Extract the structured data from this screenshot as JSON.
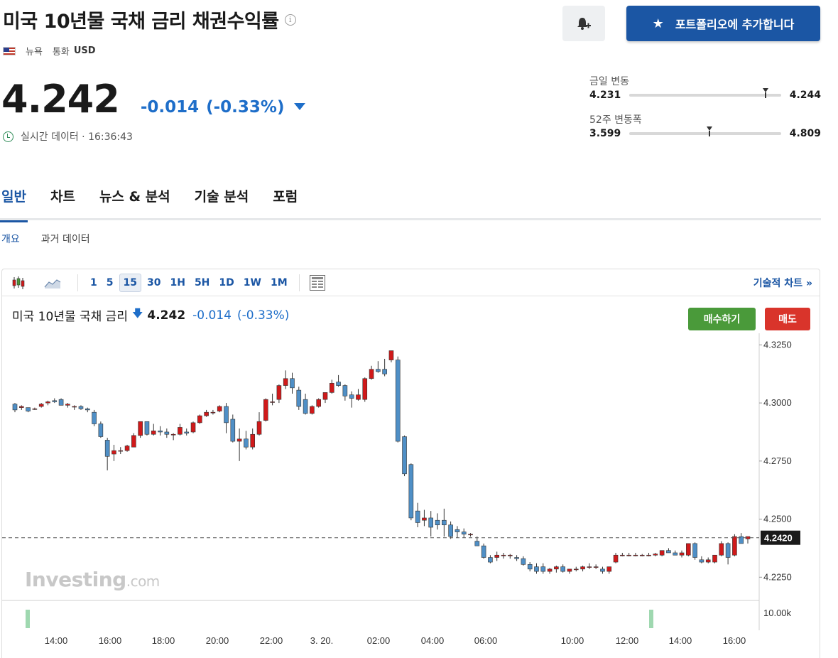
{
  "header": {
    "title": "미국 10년물 국채 금리 채권수익률",
    "info_symbol": "i",
    "location": "뉴욕",
    "currency_label": "통화",
    "currency": "USD",
    "portfolio_button": "포트폴리오에 추가합니다",
    "bell_icon": "bell-plus-icon",
    "star_icon": "star-icon"
  },
  "quote": {
    "price": "4.242",
    "change": "-0.014",
    "change_pct": "(-0.33%)",
    "direction": "down",
    "realtime_label": "실시간 데이터 · 16:36:43"
  },
  "ranges": {
    "daily": {
      "label": "금일 변동",
      "low": "4.231",
      "high": "4.244",
      "position": 0.9
    },
    "week52": {
      "label": "52주 변동폭",
      "low": "3.599",
      "high": "4.809",
      "position": 0.53
    }
  },
  "tabs": [
    "일반",
    "차트",
    "뉴스 & 분석",
    "기술 분석",
    "포럼"
  ],
  "subtabs": [
    "개요",
    "과거 데이터"
  ],
  "chart_toolbar": {
    "timeframes": [
      "1",
      "5",
      "15",
      "30",
      "1H",
      "5H",
      "1D",
      "1W",
      "1M"
    ],
    "selected": "15",
    "tech_link": "기술적 차트 »"
  },
  "chart_header": {
    "name": "미국 10년물 국채 금리",
    "arrow": "🡇",
    "price": "4.242",
    "change": "-0.014",
    "change_pct": "(-0.33%)",
    "buy": "매수하기",
    "sell": "매도"
  },
  "watermark": {
    "brand": "Investing",
    "suffix": ".com"
  },
  "colors": {
    "accent": "#1b56a4",
    "down": "#1e6ec9",
    "up_candle": "#d0191a",
    "down_candle": "#4f8fc6",
    "buy": "#4a9a3a",
    "sell": "#d9342b"
  },
  "chart_data": {
    "type": "candlestick",
    "title": "미국 10년물 국채 금리",
    "ylim": [
      4.215,
      4.33
    ],
    "yticks": [
      "4.3250",
      "4.3000",
      "4.2750",
      "4.2500",
      "4.2250"
    ],
    "current_price_label": "4.2420",
    "current_price": 4.242,
    "volume_label": "10.00k",
    "xticks": [
      "14:00",
      "16:00",
      "18:00",
      "20:00",
      "22:00",
      "3. 20.",
      "02:00",
      "04:00",
      "06:00",
      "10:00",
      "12:00",
      "14:00",
      "16:00"
    ],
    "candles_ohlc": [
      [
        4.2995,
        4.3,
        4.296,
        4.297
      ],
      [
        4.298,
        4.299,
        4.297,
        4.2985
      ],
      [
        4.298,
        4.298,
        4.296,
        4.2965
      ],
      [
        4.2975,
        4.298,
        4.297,
        4.2975
      ],
      [
        4.2985,
        4.3,
        4.298,
        4.2995
      ],
      [
        4.3,
        4.301,
        4.299,
        4.3005
      ],
      [
        4.301,
        4.302,
        4.3,
        4.3005
      ],
      [
        4.3015,
        4.302,
        4.3,
        4.299
      ],
      [
        4.299,
        4.3,
        4.298,
        4.2995
      ],
      [
        4.2985,
        4.299,
        4.297,
        4.2985
      ],
      [
        4.2985,
        4.299,
        4.297,
        4.2975
      ],
      [
        4.2975,
        4.298,
        4.296,
        4.297
      ],
      [
        4.296,
        4.297,
        4.29,
        4.291
      ],
      [
        4.291,
        4.292,
        4.285,
        4.2855
      ],
      [
        4.284,
        4.285,
        4.271,
        4.277
      ],
      [
        4.278,
        4.282,
        4.275,
        4.2795
      ],
      [
        4.2795,
        4.281,
        4.278,
        4.2795
      ],
      [
        4.2795,
        4.282,
        4.279,
        4.2815
      ],
      [
        4.281,
        4.287,
        4.281,
        4.286
      ],
      [
        4.286,
        4.292,
        4.285,
        4.292
      ],
      [
        4.292,
        4.292,
        4.286,
        4.2865
      ],
      [
        4.2865,
        4.291,
        4.286,
        4.288
      ],
      [
        4.288,
        4.29,
        4.286,
        4.2875
      ],
      [
        4.2875,
        4.289,
        4.285,
        4.2865
      ],
      [
        4.2865,
        4.287,
        4.284,
        4.2865
      ],
      [
        4.2865,
        4.291,
        4.286,
        4.2895
      ],
      [
        4.2875,
        4.289,
        4.286,
        4.287
      ],
      [
        4.2875,
        4.292,
        4.287,
        4.2915
      ],
      [
        4.2915,
        4.295,
        4.291,
        4.2945
      ],
      [
        4.2945,
        4.297,
        4.294,
        4.296
      ],
      [
        4.296,
        4.297,
        4.295,
        4.296
      ],
      [
        4.2965,
        4.299,
        4.296,
        4.2985
      ],
      [
        4.2985,
        4.3,
        4.287,
        4.2915
      ],
      [
        4.293,
        4.295,
        4.283,
        4.2835
      ],
      [
        4.2835,
        4.289,
        4.275,
        4.2845
      ],
      [
        4.2845,
        4.288,
        4.28,
        4.281
      ],
      [
        4.281,
        4.289,
        4.28,
        4.2865
      ],
      [
        4.2865,
        4.296,
        4.286,
        4.292
      ],
      [
        4.2925,
        4.302,
        4.292,
        4.3015
      ],
      [
        4.3005,
        4.304,
        4.299,
        4.3005
      ],
      [
        4.3015,
        4.308,
        4.3,
        4.3075
      ],
      [
        4.3075,
        4.314,
        4.306,
        4.3105
      ],
      [
        4.3105,
        4.313,
        4.304,
        4.3065
      ],
      [
        4.3055,
        4.307,
        4.297,
        4.2985
      ],
      [
        4.3015,
        4.304,
        4.295,
        4.2955
      ],
      [
        4.2955,
        4.299,
        4.295,
        4.2985
      ],
      [
        4.2985,
        4.302,
        4.298,
        4.3015
      ],
      [
        4.3015,
        4.304,
        4.3,
        4.3045
      ],
      [
        4.3045,
        4.31,
        4.304,
        4.3085
      ],
      [
        4.309,
        4.312,
        4.307,
        4.3075
      ],
      [
        4.3075,
        4.308,
        4.301,
        4.303
      ],
      [
        4.3035,
        4.305,
        4.298,
        4.302
      ],
      [
        4.3015,
        4.306,
        4.301,
        4.3035
      ],
      [
        4.3015,
        4.311,
        4.3005,
        4.3105
      ],
      [
        4.3105,
        4.316,
        4.31,
        4.3145
      ],
      [
        4.3145,
        4.318,
        4.313,
        4.3135
      ],
      [
        4.3145,
        4.319,
        4.3115,
        4.3125
      ],
      [
        4.3185,
        4.3225,
        4.3175,
        4.3225
      ],
      [
        4.3185,
        4.32,
        4.283,
        4.2835
      ],
      [
        4.2855,
        4.286,
        4.2685,
        4.2695
      ],
      [
        4.2735,
        4.274,
        4.2495,
        4.2505
      ],
      [
        4.2535,
        4.257,
        4.2465,
        4.2485
      ],
      [
        4.2495,
        4.254,
        4.247,
        4.2505
      ],
      [
        4.2505,
        4.2535,
        4.2425,
        4.2465
      ],
      [
        4.2495,
        4.2525,
        4.2455,
        4.2475
      ],
      [
        4.2495,
        4.2545,
        4.2425,
        4.2475
      ],
      [
        4.2475,
        4.249,
        4.2415,
        4.2425
      ],
      [
        4.2455,
        4.247,
        4.242,
        4.2445
      ],
      [
        4.2445,
        4.246,
        4.242,
        4.2435
      ],
      [
        4.2435,
        4.244,
        4.2425,
        4.2435
      ],
      [
        4.2405,
        4.2425,
        4.2385,
        4.2385
      ],
      [
        4.2385,
        4.2395,
        4.233,
        4.2335
      ],
      [
        4.2335,
        4.2345,
        4.231,
        4.2315
      ],
      [
        4.2335,
        4.236,
        4.232,
        4.2345
      ],
      [
        4.2345,
        4.2355,
        4.233,
        4.2345
      ],
      [
        4.2345,
        4.235,
        4.233,
        4.2345
      ],
      [
        4.2335,
        4.2345,
        4.232,
        4.233
      ],
      [
        4.233,
        4.234,
        4.23,
        4.2305
      ],
      [
        4.2305,
        4.2315,
        4.2275,
        4.2285
      ],
      [
        4.2295,
        4.231,
        4.2265,
        4.2275
      ],
      [
        4.2295,
        4.231,
        4.2265,
        4.2275
      ],
      [
        4.2275,
        4.229,
        4.2265,
        4.2285
      ],
      [
        4.2285,
        4.23,
        4.227,
        4.2295
      ],
      [
        4.2295,
        4.2305,
        4.227,
        4.2275
      ],
      [
        4.2275,
        4.2285,
        4.2265,
        4.2285
      ],
      [
        4.2285,
        4.2295,
        4.2275,
        4.2285
      ],
      [
        4.2285,
        4.23,
        4.2275,
        4.2295
      ],
      [
        4.2295,
        4.231,
        4.2285,
        4.2295
      ],
      [
        4.2295,
        4.2305,
        4.2285,
        4.2295
      ],
      [
        4.2285,
        4.2295,
        4.2265,
        4.2275
      ],
      [
        4.2275,
        4.2295,
        4.2265,
        4.2295
      ],
      [
        4.2315,
        4.2355,
        4.231,
        4.2345
      ],
      [
        4.2345,
        4.2355,
        4.234,
        4.2345
      ],
      [
        4.2345,
        4.2355,
        4.234,
        4.2345
      ],
      [
        4.2345,
        4.2355,
        4.234,
        4.2345
      ],
      [
        4.2345,
        4.235,
        4.234,
        4.2345
      ],
      [
        4.2345,
        4.2355,
        4.234,
        4.2345
      ],
      [
        4.2345,
        4.2355,
        4.234,
        4.235
      ],
      [
        4.2345,
        4.2365,
        4.234,
        4.2365
      ],
      [
        4.2365,
        4.2375,
        4.2355,
        4.2355
      ],
      [
        4.2355,
        4.2365,
        4.2345,
        4.2345
      ],
      [
        4.2345,
        4.2365,
        4.2335,
        4.2355
      ],
      [
        4.2345,
        4.2395,
        4.234,
        4.2395
      ],
      [
        4.2395,
        4.24,
        4.2325,
        4.2335
      ],
      [
        4.2325,
        4.234,
        4.231,
        4.2315
      ],
      [
        4.2315,
        4.2335,
        4.231,
        4.2325
      ],
      [
        4.2315,
        4.2345,
        4.231,
        4.2345
      ],
      [
        4.2345,
        4.2405,
        4.234,
        4.2395
      ],
      [
        4.2395,
        4.24,
        4.2305,
        4.2335
      ],
      [
        4.2345,
        4.2435,
        4.234,
        4.2425
      ],
      [
        4.2425,
        4.244,
        4.2395,
        4.2395
      ],
      [
        4.2415,
        4.2425,
        4.2395,
        4.2425
      ]
    ],
    "volume_bars": [
      0,
      118
    ],
    "grid": true
  }
}
